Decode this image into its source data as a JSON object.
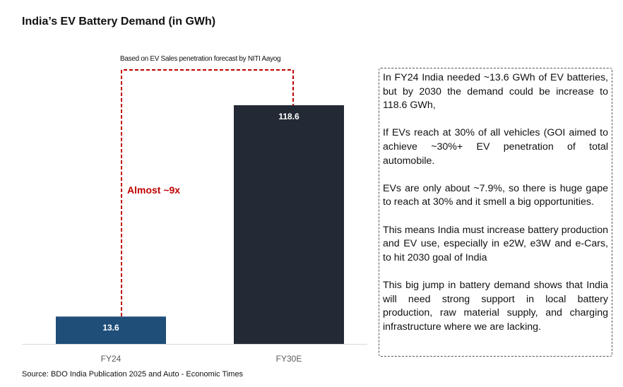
{
  "title": "India’s EV Battery Demand (in GWh)",
  "annotation_note": "Based on EV Sales penetration forecast by NITI Aayog",
  "annotation_multiplier": "Almost ~9x",
  "source": "Source: BDO India Publication 2025 and Auto - Economic Times",
  "chart_data": {
    "type": "bar",
    "title": "India’s EV Battery Demand (in GWh)",
    "categories": [
      "FY24",
      "FY30E"
    ],
    "values": [
      13.6,
      118.6
    ],
    "data_labels": [
      "13.6",
      "118.6"
    ],
    "colors": [
      "#1f4e79",
      "#232a35"
    ],
    "ylim": [
      0,
      118.6
    ],
    "grid": false,
    "xlabel": "",
    "ylabel": ""
  },
  "commentary": [
    "In FY24 India needed ~13.6 GWh of EV batteries, but by 2030 the demand could be increase to 118.6 GWh,",
    "If EVs reach at 30% of all vehicles (GOI aimed to achieve ~30%+ EV penetration of total automobile.",
    "EVs are only about ~7.9%, so there is huge gape to reach at 30% and it smell a big opportunities.",
    "This means India must increase battery production and EV use, especially in e2W, e3W and e-Cars, to hit 2030 goal of India",
    "This big jump in battery demand shows that India will need strong support in local battery production, raw material supply, and charging infrastructure  where we are lacking."
  ]
}
